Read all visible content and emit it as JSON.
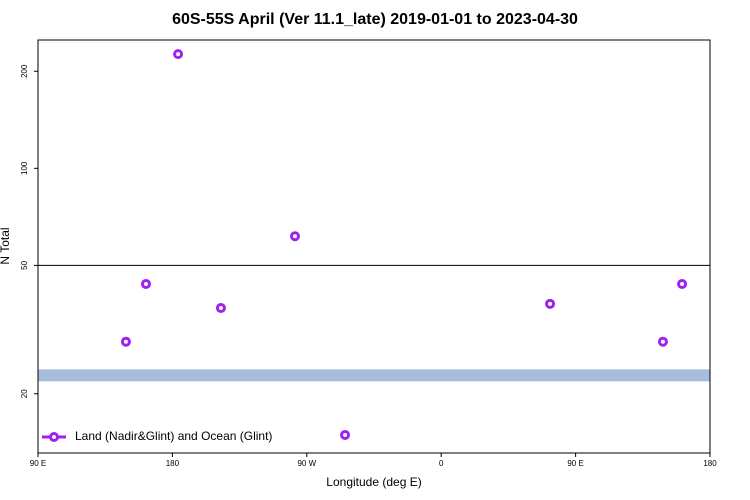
{
  "chart_data": {
    "type": "scatter",
    "title": "60S-55S April (Ver 11.1_late)   2019-01-01 to 2023-04-30",
    "x_label": "Longitude (deg E)",
    "y_label": "N Total",
    "x": [
      148.9,
      162.3,
      183.8,
      212.5,
      262.1,
      295.6,
      432.9,
      508.5,
      521.3
    ],
    "series": [
      {
        "name": "Land (Nadir&Glint) and Ocean (Glint)",
        "color": "#a020f0",
        "values": [
          29.0,
          43.8,
          226,
          36.9,
          61.6,
          14.9,
          38.0,
          29.0,
          43.8
        ]
      }
    ],
    "xlim": [
      90,
      540
    ],
    "xticks": [
      {
        "value": 90,
        "label": "90 E"
      },
      180,
      {
        "value": 270,
        "label": "90 W"
      },
      {
        "value": 360,
        "label": "0"
      },
      {
        "value": 450,
        "label": "90 E"
      },
      {
        "value": 540,
        "label": "180"
      }
    ],
    "ylim": [
      13.1,
      250
    ],
    "ylog": true,
    "yticks": [
      20,
      50,
      100,
      200
    ],
    "reference_lines": [
      {
        "value": 50,
        "color": "#000000"
      },
      {
        "value": 22.8,
        "color": "#a7bcdc"
      }
    ],
    "legend": "bottom-left"
  }
}
